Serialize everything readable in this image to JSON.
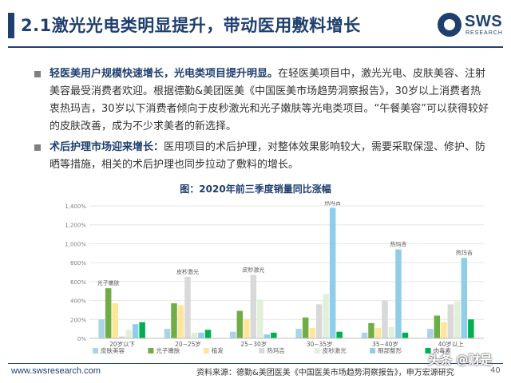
{
  "slide": {
    "title": "2.1激光光电类明显提升，带动医用敷料增长",
    "logo_text": "SWS",
    "logo_sub": "RESEARCH",
    "bullets": [
      {
        "strong": "轻医美用户规模快速增长，光电类项目提升明显。",
        "text": "在轻医美项目中，激光光电、皮肤美容、注射美容最受消费者欢迎。根据德勤&美团医美《中国医美市场趋势洞察报告》，30岁以上消费者热衷热玛吉，30岁以下消费者倾向于皮秒激光和光子嫩肤等光电类项目。“午餐美容”可以获得较好的皮肤改善，成为不少求美者的新选择。"
      },
      {
        "strong": "术后护理市场迎来增长：",
        "text": "医用项目的术后护理，对整体效果影响较大，需要采取保湿、修护、防晒等措施，相关的术后护理也同步拉动了敷料的增长。"
      }
    ],
    "footer_url": "www.swsresearch.com",
    "footer_source": "资料来源：德勤&美团医美《中国医美市场趋势洞察报告》，申万宏源研究",
    "watermark": "头条 @财是",
    "page_number": "40"
  },
  "chart_data": {
    "type": "bar",
    "title": "图：2020年前三季度销量同比涨幅",
    "categories": [
      "20岁以下",
      "20~25岁",
      "25~30岁",
      "30~35岁",
      "35~40岁",
      "40岁以上"
    ],
    "series": [
      {
        "name": "皮肤美容",
        "color": "#a9d3e8",
        "values": [
          200,
          100,
          70,
          100,
          60,
          100
        ]
      },
      {
        "name": "光子嫩肤",
        "color": "#70ad47",
        "values": [
          530,
          370,
          290,
          220,
          160,
          240
        ]
      },
      {
        "name": "植发",
        "color": "#ffe699",
        "values": [
          370,
          350,
          200,
          110,
          110,
          170
        ]
      },
      {
        "name": "热玛吉",
        "color": "#d9d9d9",
        "values": [
          20,
          650,
          670,
          360,
          400,
          360
        ]
      },
      {
        "name": "皮秒激光",
        "color": "#e2f0d9",
        "values": [
          90,
          60,
          410,
          470,
          120,
          390
        ]
      },
      {
        "name": "眼部整形",
        "color": "#8fcde9",
        "values": [
          150,
          60,
          40,
          1380,
          940,
          850
        ]
      },
      {
        "name": "肉毒素",
        "color": "#00b050",
        "values": [
          170,
          90,
          60,
          70,
          60,
          200
        ]
      }
    ],
    "ylim": [
      0,
      1400
    ],
    "yticks": [
      "0%",
      "200%",
      "400%",
      "600%",
      "800%",
      "1,000%",
      "1,200%",
      "1,400%"
    ],
    "annotations": [
      {
        "text": "光子嫩肤",
        "category": 0,
        "series": 1
      },
      {
        "text": "皮秒激光",
        "category": 1,
        "series": 3
      },
      {
        "text": "皮秒激光",
        "category": 2,
        "series": 3
      },
      {
        "text": "热玛吉",
        "category": 3,
        "series": 5
      },
      {
        "text": "热玛吉",
        "category": 4,
        "series": 5
      },
      {
        "text": "热玛吉",
        "category": 5,
        "series": 5
      }
    ],
    "legend": "bottom",
    "grid": true
  }
}
